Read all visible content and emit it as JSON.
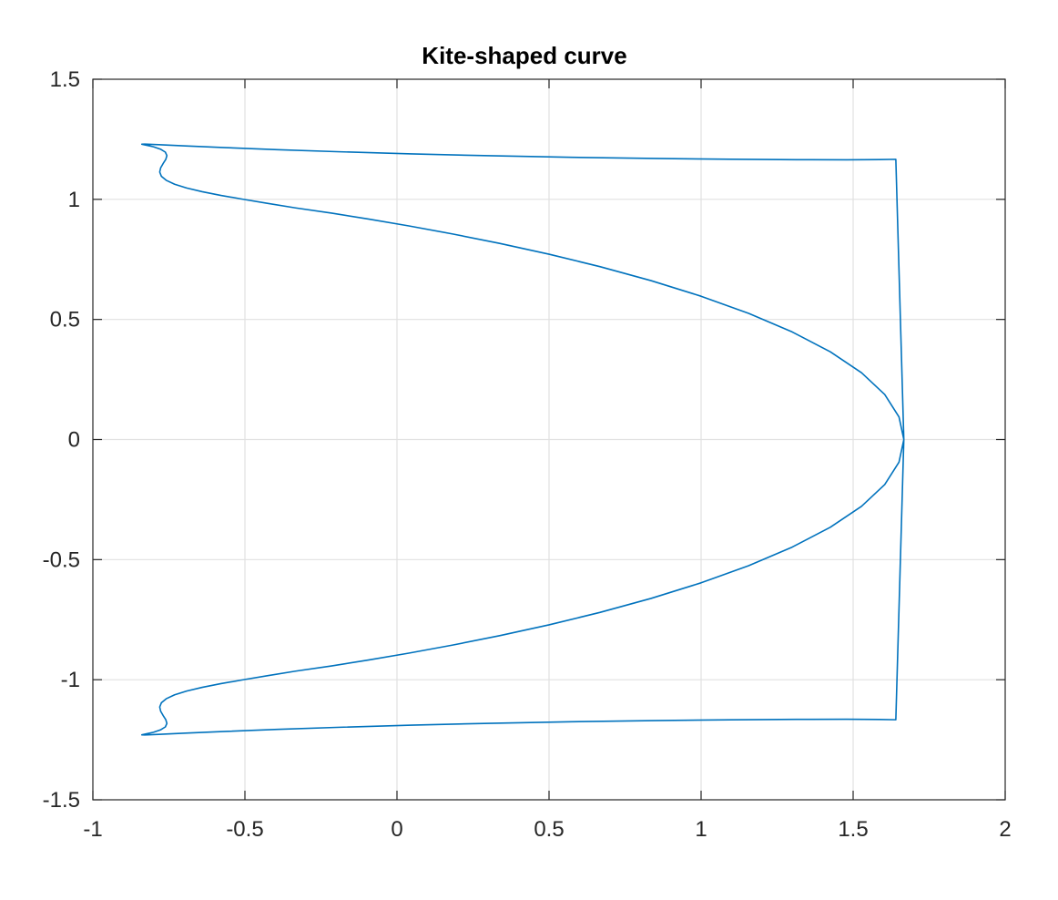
{
  "chart_data": {
    "type": "line",
    "title": "Kite-shaped curve",
    "xlabel": "",
    "ylabel": "",
    "xlim": [
      -1,
      2
    ],
    "ylim": [
      -1.5,
      1.5
    ],
    "xticks": [
      -1,
      -0.5,
      0,
      0.5,
      1,
      1.5,
      2
    ],
    "yticks": [
      -1.5,
      -1,
      -0.5,
      0,
      0.5,
      1,
      1.5
    ],
    "xtick_labels": [
      "-1",
      "-0.5",
      "0",
      "0.5",
      "1",
      "1.5",
      "2"
    ],
    "ytick_labels": [
      "-1.5",
      "-1",
      "-0.5",
      "0",
      "0.5",
      "1",
      "1.5"
    ],
    "grid": true,
    "series": [
      {
        "color": "#0072BD",
        "x": [
          1.6667,
          1.6508,
          1.6039,
          1.5276,
          1.4249,
          1.2997,
          1.1564,
          1.0,
          0.8353,
          0.6672,
          0.5,
          0.3377,
          0.1833,
          0.039,
          -0.0941,
          -0.2153,
          -0.3333,
          -0.4243,
          -0.5062,
          -0.5785,
          -0.6406,
          -0.6917,
          -0.7312,
          -0.7588,
          -0.7748,
          -0.7802,
          -0.7771,
          -0.7691,
          -0.7604,
          -0.7566,
          -0.7617,
          -0.7778,
          -0.8009,
          -0.8253,
          -0.839,
          -0.8292,
          -0.7839,
          -0.6957,
          -0.5641,
          -0.3934,
          -0.1875,
          0.0477,
          0.3049,
          0.5743,
          0.844,
          1.0965,
          1.3132,
          1.4791,
          1.5872,
          1.6404,
          1.6667,
          1.6404,
          1.5872,
          1.4791,
          1.3132,
          1.0965,
          0.844,
          0.5743,
          0.3049,
          0.0477,
          -0.1875,
          -0.3934,
          -0.5641,
          -0.6957,
          -0.7839,
          -0.8292,
          -0.839,
          -0.8253,
          -0.8009,
          -0.7778,
          -0.7617,
          -0.7566,
          -0.7604,
          -0.7691,
          -0.7771,
          -0.7802,
          -0.7748,
          -0.7588,
          -0.7312,
          -0.6917,
          -0.6406,
          -0.5785,
          -0.5062,
          -0.4243,
          -0.3333,
          -0.2153,
          -0.0941,
          0.039,
          0.1833,
          0.3377,
          0.5,
          0.6672,
          0.8353,
          1.0,
          1.1564,
          1.2997,
          1.4249,
          1.5276,
          1.6039,
          1.6508,
          1.6667
        ],
        "y": [
          0.0,
          0.0942,
          0.1874,
          0.278,
          0.3652,
          0.4479,
          0.5252,
          0.5966,
          0.6616,
          0.7199,
          0.7716,
          0.8167,
          0.8558,
          0.8893,
          0.9181,
          0.9428,
          0.9642,
          0.9831,
          1.0003,
          1.0163,
          1.0318,
          1.0472,
          1.063,
          1.0793,
          1.0962,
          1.1136,
          1.1312,
          1.1488,
          1.1659,
          1.182,
          1.1966,
          1.209,
          1.2189,
          1.2258,
          1.2295,
          1.23,
          1.2275,
          1.2224,
          1.2153,
          1.2069,
          1.198,
          1.1893,
          1.1815,
          1.175,
          1.1701,
          1.1668,
          1.1651,
          1.1647,
          1.1654,
          1.1667,
          0.0,
          -1.1667,
          -1.1654,
          -1.1647,
          -1.1651,
          -1.1668,
          -1.1701,
          -1.175,
          -1.1815,
          -1.1893,
          -1.198,
          -1.2069,
          -1.2153,
          -1.2224,
          -1.2275,
          -1.23,
          -1.2295,
          -1.2258,
          -1.2189,
          -1.209,
          -1.1966,
          -1.182,
          -1.1659,
          -1.1488,
          -1.1312,
          -1.1136,
          -1.0962,
          -1.0793,
          -1.063,
          -1.0472,
          -1.0318,
          -1.0163,
          -1.0003,
          -0.9831,
          -0.9642,
          -0.9428,
          -0.9181,
          -0.8893,
          -0.8558,
          -0.8167,
          -0.7716,
          -0.7199,
          -0.6616,
          -0.5966,
          -0.5252,
          -0.4479,
          -0.3652,
          -0.278,
          -0.1874,
          -0.0942,
          0.0
        ]
      }
    ]
  }
}
